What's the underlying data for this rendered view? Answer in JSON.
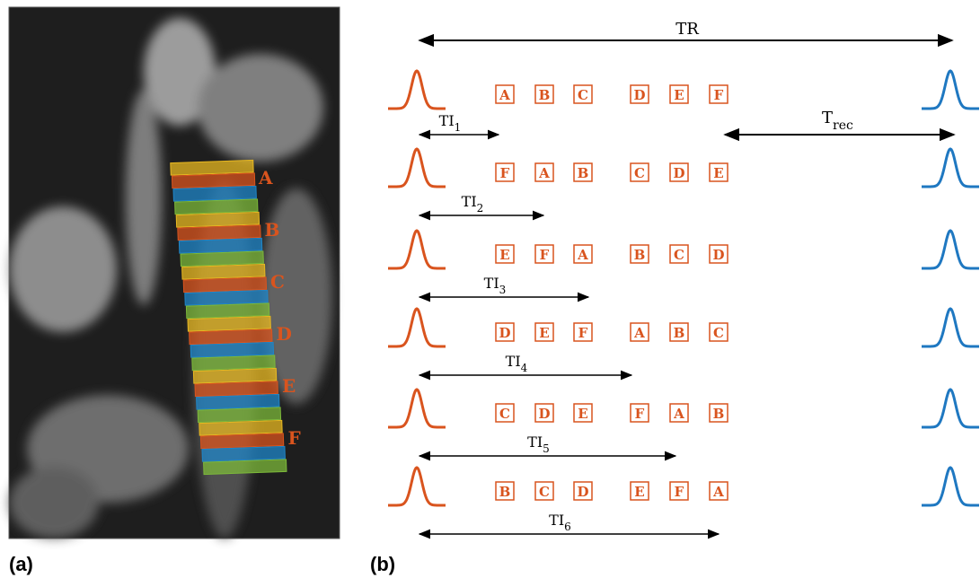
{
  "panels": [
    {
      "label": "(a)",
      "slab_labels": [
        "A",
        "B",
        "C",
        "D",
        "E",
        "F"
      ]
    },
    {
      "label": "(b)",
      "tr_label": "TR",
      "trec_label": {
        "main": "T",
        "sub": "rec"
      },
      "rows": [
        {
          "ti": {
            "main": "TI",
            "sub": "1"
          },
          "boxes": [
            "A",
            "B",
            "C",
            "D",
            "E",
            "F"
          ]
        },
        {
          "ti": {
            "main": "TI",
            "sub": "2"
          },
          "boxes": [
            "F",
            "A",
            "B",
            "C",
            "D",
            "E"
          ]
        },
        {
          "ti": {
            "main": "TI",
            "sub": "3"
          },
          "boxes": [
            "E",
            "F",
            "A",
            "B",
            "C",
            "D"
          ]
        },
        {
          "ti": {
            "main": "TI",
            "sub": "4"
          },
          "boxes": [
            "D",
            "E",
            "F",
            "A",
            "B",
            "C"
          ]
        },
        {
          "ti": {
            "main": "TI",
            "sub": "5"
          },
          "boxes": [
            "C",
            "D",
            "E",
            "F",
            "A",
            "B"
          ]
        },
        {
          "ti": {
            "main": "TI",
            "sub": "6"
          },
          "boxes": [
            "B",
            "C",
            "D",
            "E",
            "F",
            "A"
          ]
        }
      ]
    }
  ]
}
